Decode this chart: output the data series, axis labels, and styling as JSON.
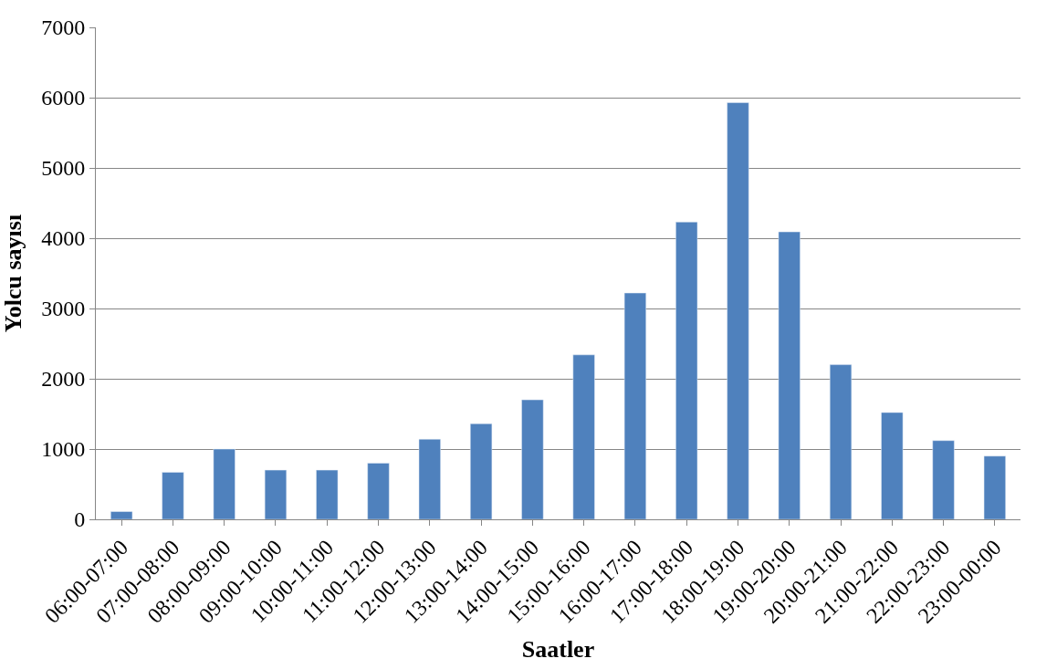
{
  "chart_data": {
    "type": "bar",
    "xlabel": "Saatler",
    "ylabel": "Yolcu sayısı",
    "categories": [
      "06:00-07:00",
      "07:00-08:00",
      "08:00-09:00",
      "09:00-10:00",
      "10:00-11:00",
      "11:00-12:00",
      "12:00-13:00",
      "13:00-14:00",
      "14:00-15:00",
      "15:00-16:00",
      "16:00-17:00",
      "17:00-18:00",
      "18:00-19:00",
      "19:00-20:00",
      "20:00-21:00",
      "21:00-22:00",
      "22:00-23:00",
      "23:00-00:00"
    ],
    "values": [
      110,
      670,
      1000,
      700,
      700,
      800,
      1140,
      1360,
      1700,
      2340,
      3220,
      4230,
      5930,
      4090,
      2200,
      1520,
      1120,
      900
    ],
    "color": "#4f81bd",
    "ylim": [
      0,
      7000
    ],
    "yticks": [
      0,
      1000,
      2000,
      3000,
      4000,
      5000,
      6000,
      7000
    ],
    "grid": "y"
  }
}
